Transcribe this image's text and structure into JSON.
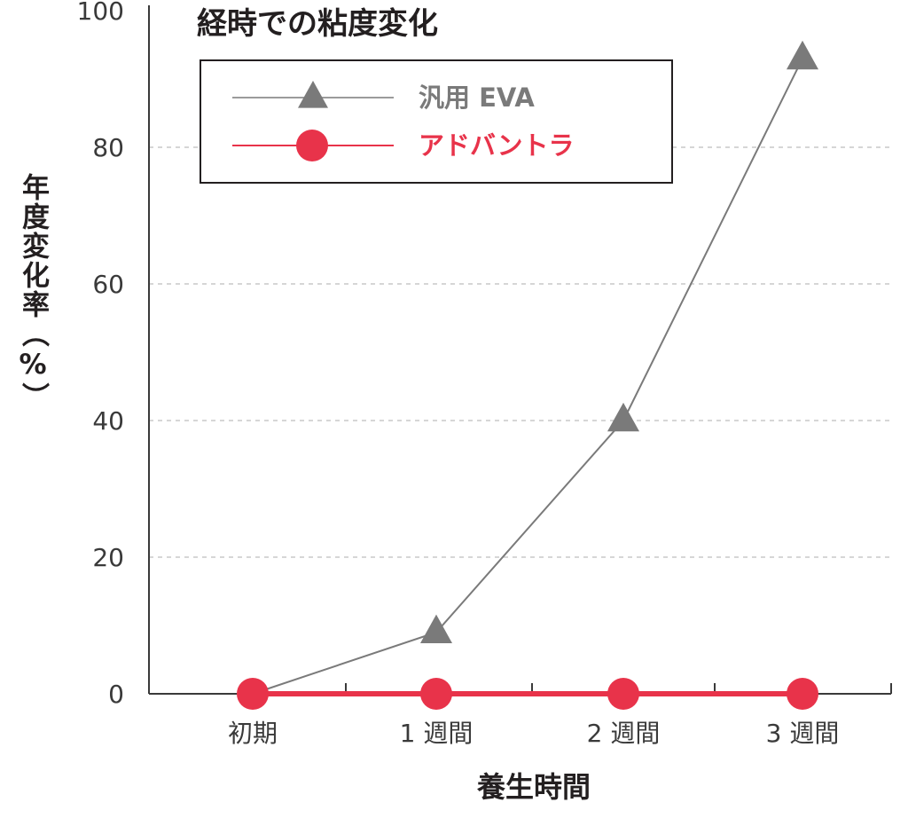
{
  "chart_data": {
    "type": "line",
    "title": "経時での粘度変化",
    "xlabel": "養生時間",
    "ylabel": "年度変化率（%）",
    "categories": [
      "初期",
      "1 週間",
      "2 週間",
      "3 週間"
    ],
    "yticks": [
      "0",
      "20",
      "40",
      "60",
      "80",
      "100"
    ],
    "ylim": [
      0,
      100
    ],
    "grid": true,
    "legend_position": "top-left",
    "series": [
      {
        "name": "汎用 EVA",
        "values": [
          0,
          9,
          40,
          93
        ],
        "color": "#7a7a7a",
        "marker": "triangle"
      },
      {
        "name": "アドバントラ",
        "values": [
          0,
          0,
          0,
          0
        ],
        "color": "#e8334a",
        "marker": "circle"
      }
    ]
  }
}
